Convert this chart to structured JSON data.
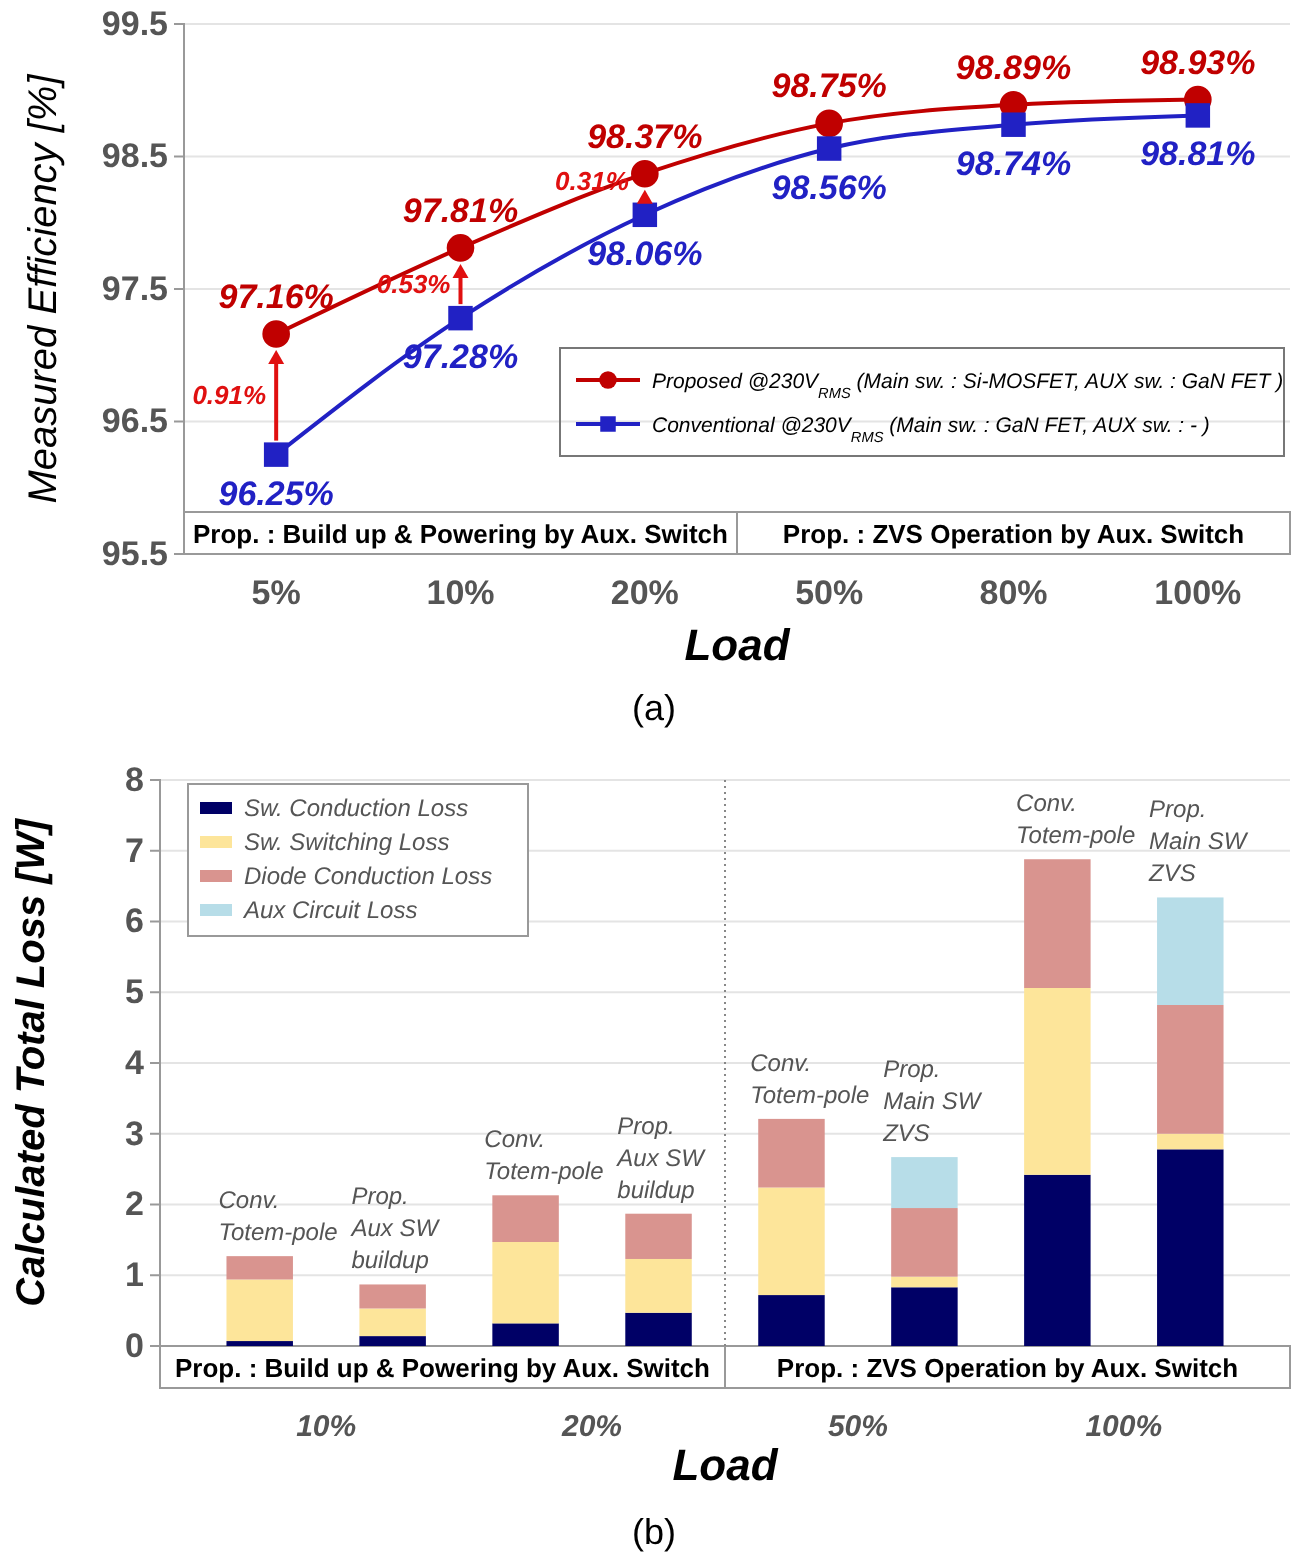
{
  "chart_data": [
    {
      "type": "line",
      "xlabel": "Load",
      "ylabel": "Measured Efficiency [%]",
      "categories": [
        "5%",
        "10%",
        "20%",
        "50%",
        "80%",
        "100%"
      ],
      "series": [
        {
          "name": "Proposed @230V$_{RMS}$ (Main sw. : Si-MOSFET, AUX sw. : GaN FET )",
          "color": "#c00000",
          "marker": "circle",
          "values": [
            97.16,
            97.81,
            98.37,
            98.75,
            98.89,
            98.93
          ],
          "value_labels": [
            "97.16%",
            "97.81%",
            "98.37%",
            "98.75%",
            "98.89%",
            "98.93%"
          ]
        },
        {
          "name": "Conventional @230V$_{RMS}$ (Main sw. : GaN FET, AUX sw. : - )",
          "color": "#2121c4",
          "marker": "square",
          "values": [
            96.25,
            97.28,
            98.06,
            98.56,
            98.74,
            98.81
          ],
          "value_labels": [
            "96.25%",
            "97.28%",
            "98.06%",
            "98.56%",
            "98.74%",
            "98.81%"
          ]
        }
      ],
      "ylim": [
        95.5,
        99.5
      ],
      "yticks": [
        95.5,
        96.5,
        97.5,
        98.5,
        99.5
      ],
      "grid": "y",
      "legend": "bottom right",
      "annotations": [
        "Prop. : Build up & Powering by Aux. Switch",
        "Prop. : ZVS Operation by Aux. Switch",
        "0.91%",
        "0.53%",
        "0.31%",
        "(a)"
      ]
    },
    {
      "type": "bar",
      "stacked": true,
      "xlabel": "Load",
      "ylabel": "Calculated Total Loss [W]",
      "categories": [
        null,
        null,
        null,
        null,
        null,
        null,
        null,
        null
      ],
      "series": [
        {
          "name": "Sw. Conduction Loss",
          "color": "#000066",
          "values": [
            0.07,
            0.14,
            0.32,
            0.47,
            0.72,
            0.83,
            2.42,
            2.78
          ]
        },
        {
          "name": "Sw. Switching Loss",
          "color": "#fde59a",
          "values": [
            0.87,
            0.39,
            1.15,
            0.76,
            1.52,
            0.15,
            2.64,
            0.22
          ]
        },
        {
          "name": "Diode Conduction Loss",
          "color": "#d9948f",
          "values": [
            0.33,
            0.34,
            0.66,
            0.64,
            0.97,
            0.97,
            1.82,
            1.82
          ]
        },
        {
          "name": "Aux Circuit Loss",
          "color": "#b7dde8",
          "values": [
            null,
            null,
            null,
            null,
            null,
            0.72,
            null,
            1.52
          ]
        }
      ],
      "ylim": [
        0,
        8
      ],
      "yticks": [
        0,
        1,
        2,
        3,
        4,
        5,
        6,
        7,
        8
      ],
      "grid": "y",
      "legend": "top left",
      "annotations": [
        "Prop. : Build up & Powering by Aux. Switch",
        "Prop. : ZVS Operation by Aux. Switch",
        "10%",
        "20%",
        "50%",
        "100%",
        "Conv.\nTotem-pole",
        "Prop.\nAux SW\nbuildup",
        "Conv.\nTotem-pole",
        "Prop.\nAux SW\nbuildup",
        "Conv.\nTotem-pole",
        "Prop.\nMain SW\nZVS",
        "Conv.\nTotem-pole",
        "Prop.\nMain SW\nZVS",
        "(b)"
      ]
    }
  ]
}
